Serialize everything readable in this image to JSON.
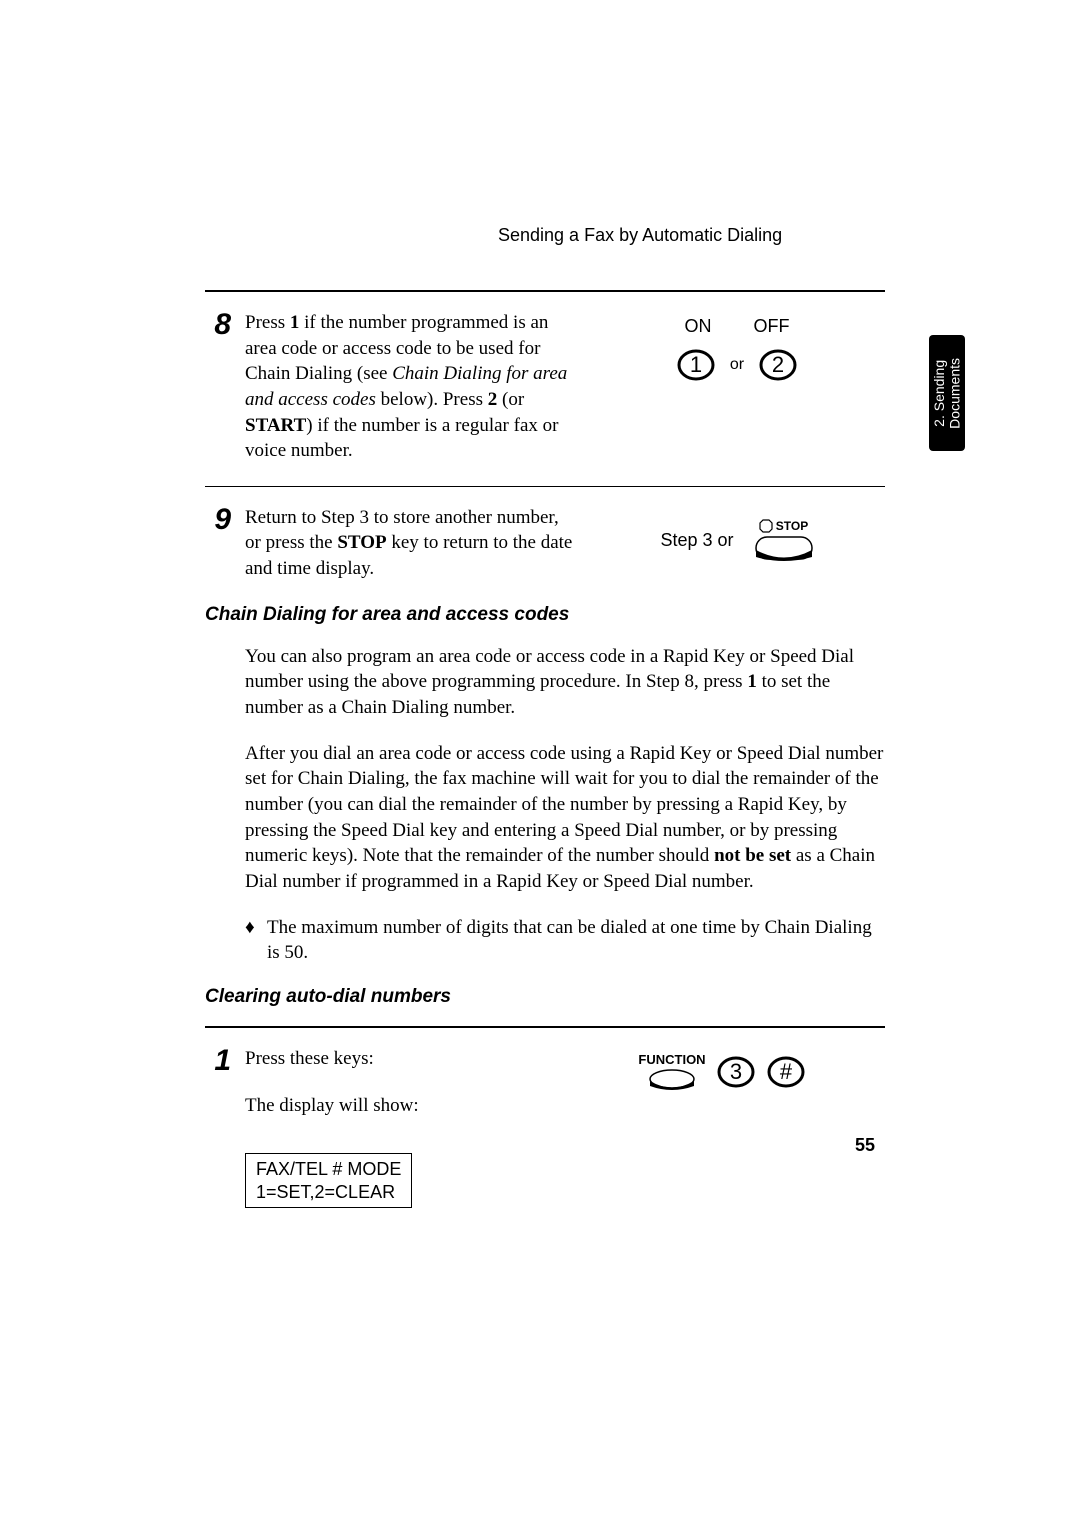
{
  "header": "Sending a Fax by Automatic Dialing",
  "tab_label": "2. Sending\nDocuments",
  "page_number": "55",
  "step8": {
    "num": "8",
    "text_parts": {
      "a": "Press ",
      "b": "1",
      "c": " if the number programmed is an area code or access code to be used for Chain Dialing (see ",
      "d": "Chain Dialing for area and access codes",
      "e": " below). Press ",
      "f": "2",
      "g": " (or ",
      "h": "START",
      "i": ") if the number is a regular fax or voice number."
    },
    "on_label": "ON",
    "off_label": "OFF",
    "key1": "1",
    "or": "or",
    "key2": "2"
  },
  "step9": {
    "num": "9",
    "text_parts": {
      "a": "Return to Step 3 to store another number, or press the ",
      "b": "STOP",
      "c": " key to return to the date and time display."
    },
    "step3_label": "Step 3 or",
    "stop_label": "STOP"
  },
  "sub1": {
    "heading": "Chain Dialing for area and access codes",
    "para1_parts": {
      "a": "You can also program an area code or access code in a Rapid Key or Speed Dial number using the above programming procedure. In Step 8, press ",
      "b": "1",
      "c": " to set the number as a Chain Dialing number."
    },
    "para2_parts": {
      "a": "After you dial an area code or access code using a Rapid Key or Speed Dial number set for Chain Dialing, the fax machine will wait for you to dial the remainder of the number (you can dial the remainder of the number by pressing a Rapid Key, by pressing the Speed Dial key and entering a Speed Dial number, or by pressing numeric keys). Note that the remainder of the number should ",
      "b": "not be set",
      "c": " as a Chain Dial number if programmed in a Rapid Key or Speed Dial number."
    },
    "bullet": "The maximum number of digits that can be dialed at one time by Chain Dialing is 50."
  },
  "sub2": {
    "heading": "Clearing auto-dial numbers"
  },
  "step1": {
    "num": "1",
    "text1": "Press these keys:",
    "text2": "The display will show:",
    "display_line1": "FAX/TEL # MODE",
    "display_line2": "1=SET,2=CLEAR",
    "function_label": "FUNCTION",
    "key3": "3",
    "keyhash": "#"
  },
  "colors": {
    "text": "#000000",
    "bg": "#ffffff"
  }
}
